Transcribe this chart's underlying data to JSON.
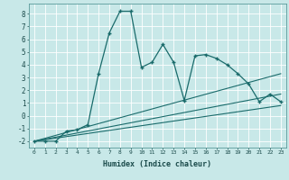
{
  "title": "",
  "xlabel": "Humidex (Indice chaleur)",
  "ylabel": "",
  "xlim": [
    -0.5,
    23.5
  ],
  "ylim": [
    -2.5,
    8.8
  ],
  "yticks": [
    -2,
    -1,
    0,
    1,
    2,
    3,
    4,
    5,
    6,
    7,
    8
  ],
  "xticks": [
    0,
    1,
    2,
    3,
    4,
    5,
    6,
    7,
    8,
    9,
    10,
    11,
    12,
    13,
    14,
    15,
    16,
    17,
    18,
    19,
    20,
    21,
    22,
    23
  ],
  "bg_color": "#c8e8e8",
  "line_color": "#1a6b6b",
  "grid_color": "#b0d8d8",
  "series_main": {
    "x": [
      0,
      1,
      2,
      3,
      4,
      5,
      6,
      7,
      8,
      9,
      10,
      11,
      12,
      13,
      14,
      15,
      16,
      17,
      18,
      19,
      20,
      21,
      22,
      23
    ],
    "y": [
      -2,
      -2,
      -2,
      -1.2,
      -1.1,
      -0.7,
      3.3,
      6.5,
      8.2,
      8.2,
      3.8,
      4.2,
      5.6,
      4.2,
      1.2,
      4.7,
      4.8,
      4.5,
      4.0,
      3.3,
      2.5,
      1.1,
      1.7,
      1.1
    ]
  },
  "regression_lines": [
    {
      "x": [
        0,
        23
      ],
      "y": [
        -2,
        3.3
      ]
    },
    {
      "x": [
        0,
        23
      ],
      "y": [
        -2,
        1.7
      ]
    },
    {
      "x": [
        0,
        23
      ],
      "y": [
        -2,
        0.8
      ]
    }
  ]
}
